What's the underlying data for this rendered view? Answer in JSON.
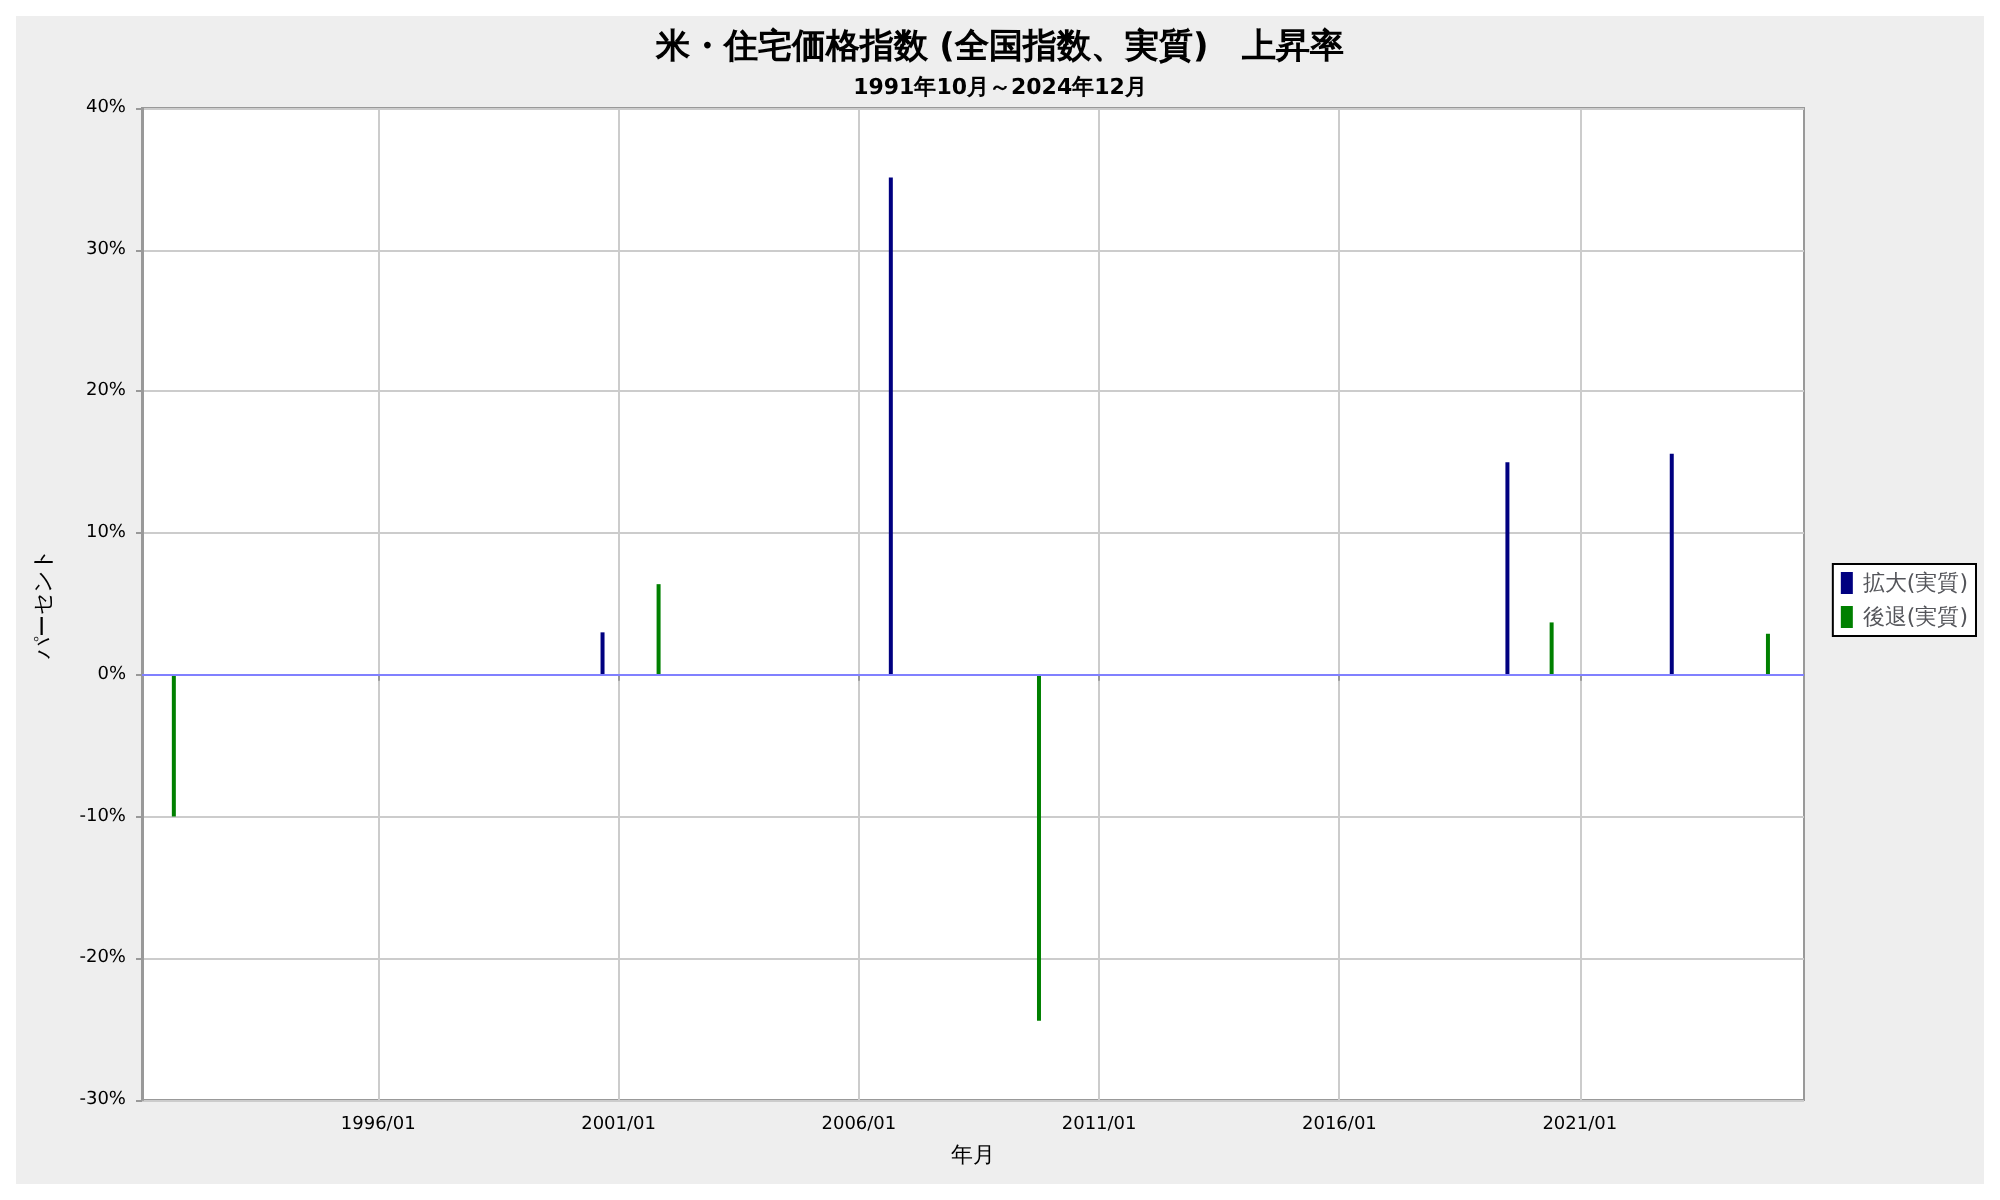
{
  "chart_data": {
    "type": "bar",
    "title": "米・住宅価格指数 (全国指数、実質)　上昇率",
    "subtitle": "1991年10月～2024年12月",
    "xlabel": "年月",
    "ylabel": "パーセント",
    "series": [
      {
        "name": "拡大(実質)",
        "color": "#000080",
        "x": [
          "2000-09",
          "2006-09",
          "2019-07",
          "2022-12"
        ],
        "values": [
          3.0,
          35.1,
          15.0,
          15.6
        ]
      },
      {
        "name": "後退(実質)",
        "color": "#008000",
        "x": [
          "1991-10",
          "2001-11",
          "2009-10",
          "2020-06",
          "2024-12"
        ],
        "values": [
          -10,
          6.4,
          -24.4,
          3.7,
          2.9
        ]
      }
    ],
    "xlim": [
      "1991-02",
      "2025-09"
    ],
    "xticks": [
      {
        "value": "1996-01",
        "label": "1996/01"
      },
      {
        "value": "2001-01",
        "label": "2001/01"
      },
      {
        "value": "2006-01",
        "label": "2006/01"
      },
      {
        "value": "2011-01",
        "label": "2011/01"
      },
      {
        "value": "2016-01",
        "label": "2016/01"
      },
      {
        "value": "2021-01",
        "label": "2021/01"
      }
    ],
    "ylim": [
      -30,
      40
    ],
    "yticks": [
      {
        "value": -30,
        "label": "-30%"
      },
      {
        "value": -20,
        "label": "-20%"
      },
      {
        "value": -10,
        "label": "-10%"
      },
      {
        "value": 0,
        "label": "0%"
      },
      {
        "value": 10,
        "label": "10%"
      },
      {
        "value": 20,
        "label": "20%"
      },
      {
        "value": 30,
        "label": "30%"
      },
      {
        "value": 40,
        "label": "40%"
      }
    ],
    "ref_lines": [
      {
        "axis": "y",
        "value": 0,
        "color": "#8080ff"
      }
    ],
    "grid": true,
    "legend": "right"
  }
}
